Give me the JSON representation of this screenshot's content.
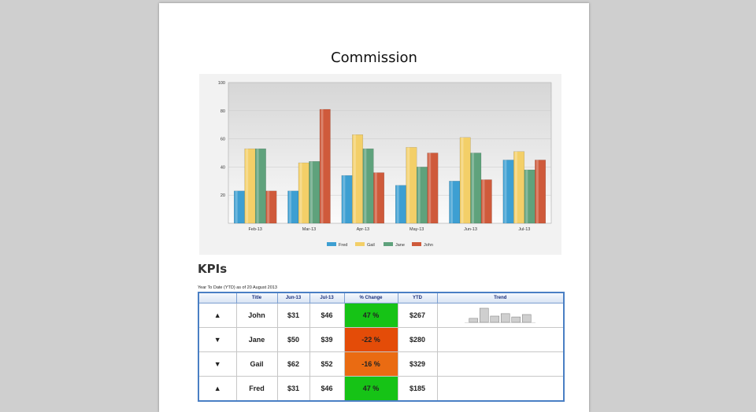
{
  "report": {
    "title": "Commission"
  },
  "chart_data": {
    "type": "bar",
    "categories": [
      "Feb-13",
      "Mar-13",
      "Apr-13",
      "May-13",
      "Jun-13",
      "Jul-13"
    ],
    "series": [
      {
        "name": "Fred",
        "color": "#3d9fd2",
        "values": [
          23,
          23,
          34,
          27,
          30,
          45
        ]
      },
      {
        "name": "Gail",
        "color": "#f3cf68",
        "values": [
          53,
          43,
          63,
          54,
          61,
          51
        ]
      },
      {
        "name": "Jane",
        "color": "#5fa27c",
        "values": [
          53,
          44,
          53,
          40,
          50,
          38
        ]
      },
      {
        "name": "John",
        "color": "#cf5a3b",
        "values": [
          23,
          81,
          36,
          50,
          31,
          45
        ]
      }
    ],
    "yticks": [
      20,
      40,
      60,
      80,
      100
    ],
    "ylim": [
      0,
      100
    ],
    "grid": true,
    "legend": "bottom",
    "xlabel": "",
    "ylabel": ""
  },
  "kpis": {
    "heading": "KPIs",
    "subtitle": "Year To Date (YTD) as of 20 August 2013",
    "columns": [
      "",
      "Title",
      "Jun-13",
      "Jul-13",
      "% Change",
      "YTD",
      "Trend"
    ],
    "rows": [
      {
        "direction": "up",
        "arrow": "▲",
        "title": "John",
        "jun": "$31",
        "jul": "$46",
        "change": "47 %",
        "change_color": "#16c316",
        "ytd": "$267",
        "trend": [
          23,
          81,
          36,
          50,
          31,
          45
        ]
      },
      {
        "direction": "down",
        "arrow": "▼",
        "title": "Jane",
        "jun": "$50",
        "jul": "$39",
        "change": "-22 %",
        "change_color": "#e44c08",
        "ytd": "$280",
        "trend": []
      },
      {
        "direction": "down",
        "arrow": "▼",
        "title": "Gail",
        "jun": "$62",
        "jul": "$52",
        "change": "-16 %",
        "change_color": "#ea6b12",
        "ytd": "$329",
        "trend": []
      },
      {
        "direction": "up",
        "arrow": "▲",
        "title": "Fred",
        "jun": "$31",
        "jul": "$46",
        "change": "47 %",
        "change_color": "#16c316",
        "ytd": "$185",
        "trend": []
      }
    ]
  }
}
